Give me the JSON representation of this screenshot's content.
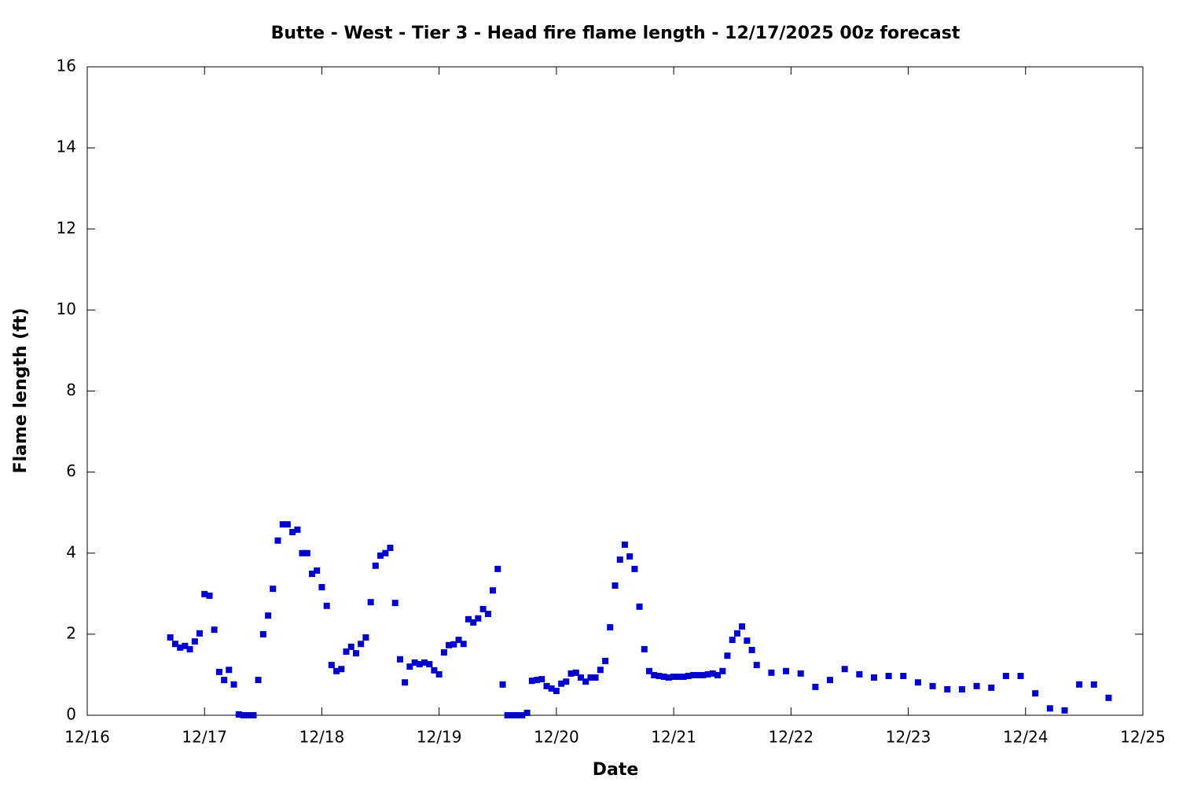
{
  "chart_data": {
    "type": "scatter",
    "title": "Butte - West - Tier 3 - Head fire flame length - 12/17/2025 00z forecast",
    "x_label": "Date",
    "y_label": "Flame length (ft)",
    "color": "#0000cc",
    "xlim": [
      16,
      25
    ],
    "xticks": [
      {
        "value": 16,
        "label": "12/16"
      },
      {
        "value": 17,
        "label": "12/17"
      },
      {
        "value": 18,
        "label": "12/18"
      },
      {
        "value": 19,
        "label": "12/19"
      },
      {
        "value": 20,
        "label": "12/20"
      },
      {
        "value": 21,
        "label": "12/21"
      },
      {
        "value": 22,
        "label": "12/22"
      },
      {
        "value": 23,
        "label": "12/23"
      },
      {
        "value": 24,
        "label": "12/24"
      },
      {
        "value": 25,
        "label": "12/25"
      }
    ],
    "ylim": [
      0,
      16
    ],
    "yticks": [
      0,
      2,
      4,
      6,
      8,
      10,
      12,
      14,
      16
    ],
    "x": [
      16.708,
      16.75,
      16.792,
      16.833,
      16.875,
      16.917,
      16.958,
      17,
      17.042,
      17.083,
      17.125,
      17.167,
      17.208,
      17.25,
      17.292,
      17.333,
      17.375,
      17.417,
      17.458,
      17.5,
      17.542,
      17.583,
      17.625,
      17.667,
      17.708,
      17.75,
      17.792,
      17.833,
      17.875,
      17.917,
      17.958,
      18,
      18.042,
      18.083,
      18.125,
      18.167,
      18.208,
      18.25,
      18.292,
      18.333,
      18.375,
      18.417,
      18.458,
      18.5,
      18.542,
      18.583,
      18.625,
      18.667,
      18.708,
      18.75,
      18.792,
      18.833,
      18.875,
      18.917,
      18.958,
      19,
      19.042,
      19.083,
      19.125,
      19.167,
      19.208,
      19.25,
      19.292,
      19.333,
      19.375,
      19.417,
      19.458,
      19.5,
      19.542,
      19.583,
      19.625,
      19.667,
      19.708,
      19.75,
      19.792,
      19.833,
      19.875,
      19.917,
      19.958,
      20,
      20.042,
      20.083,
      20.125,
      20.167,
      20.208,
      20.25,
      20.292,
      20.333,
      20.375,
      20.417,
      20.458,
      20.5,
      20.542,
      20.583,
      20.625,
      20.667,
      20.708,
      20.75,
      20.792,
      20.833,
      20.875,
      20.917,
      20.958,
      21,
      21.042,
      21.083,
      21.125,
      21.167,
      21.208,
      21.25,
      21.292,
      21.333,
      21.375,
      21.417,
      21.458,
      21.5,
      21.542,
      21.583,
      21.625,
      21.667,
      21.708,
      21.833,
      21.958,
      22.083,
      22.208,
      22.333,
      22.458,
      22.583,
      22.708,
      22.833,
      22.958,
      23.083,
      23.208,
      23.333,
      23.458,
      23.583,
      23.708,
      23.833,
      23.958,
      24.083,
      24.208,
      24.333,
      24.458,
      24.583,
      24.708
    ],
    "values": [
      1.92,
      1.76,
      1.67,
      1.71,
      1.63,
      1.82,
      2.02,
      2.99,
      2.95,
      2.11,
      1.07,
      0.87,
      1.12,
      0.76,
      0.02,
      0,
      0,
      0,
      0.87,
      2.0,
      2.46,
      3.12,
      4.31,
      4.71,
      4.71,
      4.52,
      4.58,
      4.0,
      4.0,
      3.49,
      3.57,
      3.16,
      2.7,
      1.24,
      1.09,
      1.14,
      1.57,
      1.69,
      1.53,
      1.76,
      1.92,
      2.79,
      3.69,
      3.94,
      4.0,
      4.13,
      2.77,
      1.38,
      0.81,
      1.2,
      1.3,
      1.26,
      1.3,
      1.26,
      1.11,
      1.01,
      1.55,
      1.73,
      1.75,
      1.86,
      1.76,
      2.37,
      2.29,
      2.39,
      2.62,
      2.5,
      3.08,
      3.61,
      0.76,
      0,
      0,
      0,
      0,
      0.06,
      0.85,
      0.87,
      0.89,
      0.72,
      0.66,
      0.6,
      0.78,
      0.83,
      1.03,
      1.05,
      0.93,
      0.83,
      0.93,
      0.93,
      1.12,
      1.34,
      2.17,
      3.2,
      3.84,
      4.21,
      3.92,
      3.61,
      2.68,
      1.63,
      1.09,
      0.99,
      0.97,
      0.95,
      0.93,
      0.95,
      0.95,
      0.95,
      0.97,
      0.99,
      0.99,
      0.99,
      1.01,
      1.03,
      0.99,
      1.09,
      1.47,
      1.86,
      2.02,
      2.19,
      1.84,
      1.61,
      1.24,
      1.05,
      1.09,
      1.03,
      0.7,
      0.87,
      1.14,
      1.01,
      0.93,
      0.97,
      0.97,
      0.81,
      0.72,
      0.64,
      0.64,
      0.72,
      0.68,
      0.97,
      0.97,
      0.54,
      0.17,
      0.12,
      0.76,
      0.76,
      0.43
    ]
  }
}
